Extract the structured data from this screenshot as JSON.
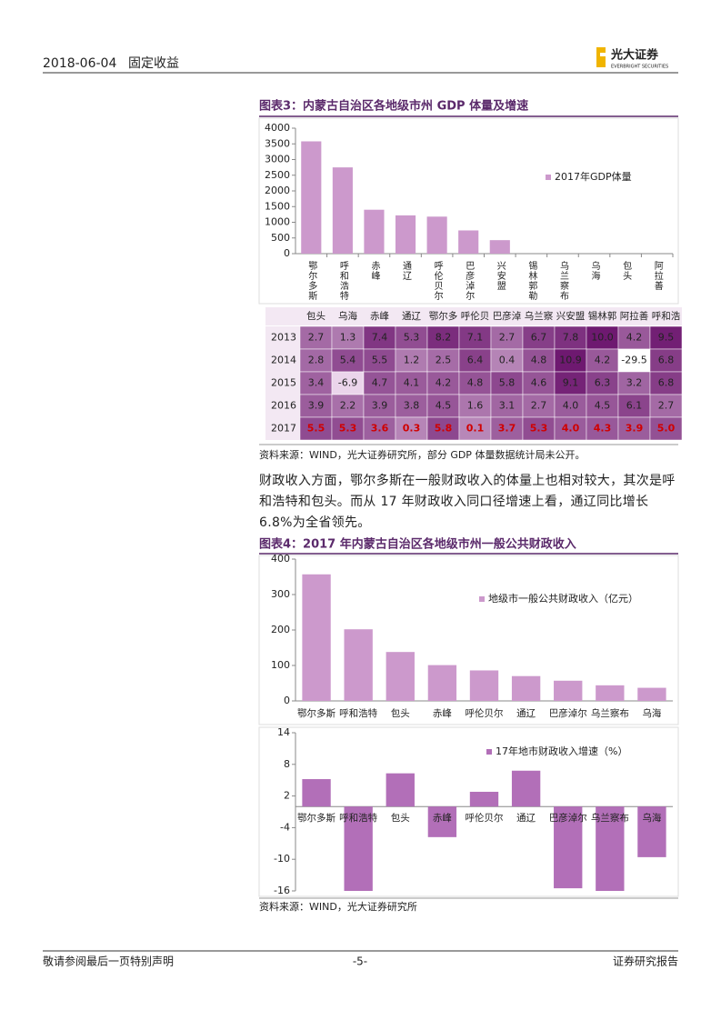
{
  "header": {
    "date": "2018-06-04",
    "section": "固定收益",
    "logo": "光大证券",
    "logo_sub": "EVERBRIGHT SECURITIES"
  },
  "chart_data": [
    {
      "type": "bar",
      "title": "图表3：内蒙古自治区各地级市州 GDP 体量及增速",
      "categories": [
        "鄂尔多斯",
        "呼和浩特",
        "赤峰",
        "通辽",
        "呼伦贝尔",
        "巴彦淖尔",
        "兴安盟",
        "锡林郭勒",
        "乌兰察布",
        "乌海",
        "包头",
        "阿拉善"
      ],
      "series": [
        {
          "name": "2017年GDP体量",
          "color": "#cc99cc",
          "values": [
            3580,
            2750,
            1400,
            1220,
            1180,
            740,
            430,
            null,
            null,
            null,
            null,
            null
          ]
        }
      ],
      "ylim": [
        0,
        4000
      ],
      "yticks": [
        0,
        500,
        1000,
        1500,
        2000,
        2500,
        3000,
        3500,
        4000
      ],
      "legend": "right"
    },
    {
      "type": "bar",
      "title": "图表4：2017 年内蒙古自治区各地级市州一般公共财政收入",
      "categories": [
        "鄂尔多斯",
        "呼和浩特",
        "包头",
        "赤峰",
        "呼伦贝尔",
        "通辽",
        "巴彦淖尔",
        "乌兰察布",
        "乌海"
      ],
      "series": [
        {
          "name": "地级市一般公共财政收入（亿元）",
          "color": "#cc99cc",
          "values": [
            357,
            202,
            138,
            101,
            86,
            70,
            57,
            44,
            37
          ]
        }
      ],
      "ylim": [
        0,
        400
      ],
      "yticks": [
        0,
        100,
        200,
        300,
        400
      ],
      "legend": "right"
    },
    {
      "type": "bar",
      "categories": [
        "鄂尔多斯",
        "呼和浩特",
        "包头",
        "赤峰",
        "呼伦贝尔",
        "通辽",
        "巴彦淖尔",
        "乌兰察布",
        "乌海"
      ],
      "series": [
        {
          "name": "17年地市财政收入增速（%）",
          "color": "#b26fb8",
          "values": [
            5.2,
            -16,
            6.3,
            -5.8,
            2.8,
            6.8,
            -15.5,
            -16,
            -9.6
          ]
        }
      ],
      "ylim": [
        -16,
        14
      ],
      "yticks": [
        -16,
        -10,
        -4,
        2,
        8,
        14
      ],
      "legend": "right"
    }
  ],
  "table": {
    "header": [
      "包头",
      "乌海",
      "赤峰",
      "通辽",
      "鄂尔多",
      "呼伦贝",
      "巴彦淖",
      "乌兰察",
      "兴安盟",
      "锡林郭",
      "阿拉善",
      "呼和浩"
    ],
    "rows": [
      {
        "label": "2013",
        "cells": [
          "2.7",
          "1.3",
          "7.4",
          "5.3",
          "8.2",
          "7.1",
          "2.7",
          "6.7",
          "7.8",
          "10.0",
          "4.2",
          "9.5"
        ]
      },
      {
        "label": "2014",
        "cells": [
          "2.8",
          "5.4",
          "5.5",
          "1.2",
          "2.5",
          "6.4",
          "0.4",
          "4.8",
          "10.9",
          "4.2",
          "-29.5",
          "6.8"
        ]
      },
      {
        "label": "2015",
        "cells": [
          "3.4",
          "-6.9",
          "4.7",
          "4.1",
          "4.2",
          "4.8",
          "5.8",
          "4.6",
          "9.1",
          "6.3",
          "3.2",
          "6.8"
        ]
      },
      {
        "label": "2016",
        "cells": [
          "3.9",
          "2.2",
          "3.9",
          "3.8",
          "4.5",
          "1.6",
          "3.1",
          "2.7",
          "4.0",
          "4.5",
          "6.1",
          "2.7"
        ]
      },
      {
        "label": "2017",
        "cells": [
          "5.5",
          "5.3",
          "3.6",
          "0.3",
          "5.8",
          "0.1",
          "3.7",
          "5.3",
          "4.0",
          "4.3",
          "3.9",
          "5.0"
        ]
      }
    ]
  },
  "source1": "资料来源：WIND，光大证券研究所，部分 GDP 体量数据统计局未公开。",
  "paragraph": "财政收入方面，鄂尔多斯在一般财政收入的体量上也相对较大，其次是呼和浩特和包头。而从 17 年财政收入同口径增速上看，通辽同比增长 6.8%为全省领先。",
  "source2": "资料来源：WIND，光大证券研究所",
  "footer": {
    "left": "敬请参阅最后一页特别声明",
    "center": "-5-",
    "right": "证券研究报告"
  }
}
